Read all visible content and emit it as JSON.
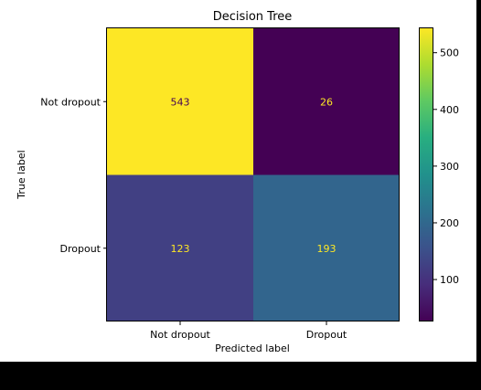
{
  "chart_data": {
    "type": "heatmap",
    "title": "Decision Tree",
    "xlabel": "Predicted label",
    "ylabel": "True label",
    "x_categories": [
      "Not dropout",
      "Dropout"
    ],
    "y_categories": [
      "Not dropout",
      "Dropout"
    ],
    "values": [
      [
        543,
        26
      ],
      [
        123,
        193
      ]
    ],
    "colormap": "viridis",
    "color_range": [
      26,
      543
    ],
    "colorbar_ticks": [
      100,
      200,
      300,
      400,
      500
    ],
    "text_colors": {
      "on_dark": "#fde725",
      "on_light": "#440154"
    }
  }
}
